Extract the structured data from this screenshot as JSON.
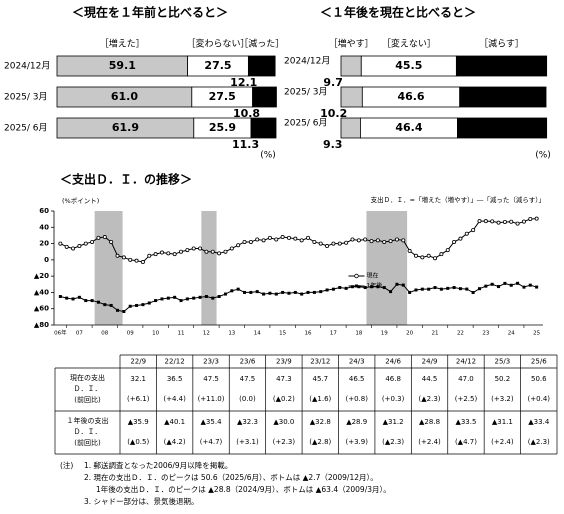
{
  "chart_data": [
    {
      "type": "bar",
      "orientation": "horizontal",
      "stacked": true,
      "title": "＜現在を１年前と比べると＞",
      "unit": "(%)",
      "categories": [
        "2024/12月",
        "2025/ 3月",
        "2025/ 6月"
      ],
      "xlim": [
        0,
        100
      ],
      "series": [
        {
          "name": "［増えた］",
          "color": "#c8c8c8",
          "values": [
            59.1,
            61,
            61.9
          ],
          "value_labels": [
            "59.1",
            "61.0",
            "61.9"
          ]
        },
        {
          "name": "［変わらない］",
          "color": "#ffffff",
          "values": [
            27.5,
            27.5,
            25.9
          ]
        },
        {
          "name": "［減った］",
          "color": "#000000",
          "values": [
            12.1,
            10.8,
            11.3
          ]
        }
      ]
    },
    {
      "type": "bar",
      "orientation": "horizontal",
      "stacked": true,
      "title": "＜１年後を現在と比べると＞",
      "unit": "(%)",
      "categories": [
        "2024/12月",
        "2025/ 3月",
        "2025/ 6月"
      ],
      "xlim": [
        0,
        100
      ],
      "series": [
        {
          "name": "［増やす］",
          "color": "#c8c8c8",
          "values": [
            9.7,
            10.2,
            9.3
          ]
        },
        {
          "name": "［変えない］",
          "color": "#ffffff",
          "values": [
            45.5,
            46.6,
            46.4
          ]
        },
        {
          "name": "［減らす］",
          "color": "#000000",
          "values": [
            43.2,
            41.3,
            42.7
          ]
        }
      ]
    },
    {
      "type": "line",
      "title": "＜支出Ｄ．Ｉ．の推移＞",
      "y_label": "(%ポイント)",
      "note": "支出Ｄ．Ｉ．=「増えた（増やす）」―「減った（減らす）」",
      "legend": "center",
      "grid": false,
      "x": [
        2006.75,
        2007,
        2007.25,
        2007.5,
        2007.75,
        2008,
        2008.25,
        2008.5,
        2008.75,
        2009,
        2009.25,
        2009.5,
        2009.75,
        2010,
        2010.25,
        2010.5,
        2010.75,
        2011,
        2011.25,
        2011.5,
        2011.75,
        2012,
        2012.25,
        2012.5,
        2012.75,
        2013,
        2013.25,
        2013.5,
        2013.75,
        2014,
        2014.25,
        2014.5,
        2014.75,
        2015,
        2015.25,
        2015.5,
        2015.75,
        2016,
        2016.25,
        2016.5,
        2016.75,
        2017,
        2017.25,
        2017.5,
        2017.75,
        2018,
        2018.25,
        2018.5,
        2018.75,
        2019,
        2019.25,
        2019.5,
        2019.75,
        2020,
        2020.25,
        2020.5,
        2020.75,
        2021,
        2021.25,
        2021.5,
        2021.75,
        2022,
        2022.25,
        2022.5,
        2022.75,
        2023,
        2023.25,
        2023.5,
        2023.75,
        2024,
        2024.25,
        2024.5,
        2024.75,
        2025,
        2025.25,
        2025.5
      ],
      "xlim": [
        2006.5,
        2025.75
      ],
      "xticks": [
        {
          "value": 2006,
          "label": "06年"
        },
        {
          "value": 2007,
          "label": "07"
        },
        {
          "value": 2008,
          "label": "08"
        },
        {
          "value": 2009,
          "label": "09"
        },
        {
          "value": 2010,
          "label": "10"
        },
        {
          "value": 2011,
          "label": "11"
        },
        {
          "value": 2012,
          "label": "12"
        },
        {
          "value": 2013,
          "label": "13"
        },
        {
          "value": 2014,
          "label": "14"
        },
        {
          "value": 2015,
          "label": "15"
        },
        {
          "value": 2016,
          "label": "16"
        },
        {
          "value": 2017,
          "label": "17"
        },
        {
          "value": 2018,
          "label": "18"
        },
        {
          "value": 2019,
          "label": "19"
        },
        {
          "value": 2020,
          "label": "20"
        },
        {
          "value": 2021,
          "label": "21"
        },
        {
          "value": 2022,
          "label": "22"
        },
        {
          "value": 2023,
          "label": "23"
        },
        {
          "value": 2024,
          "label": "24"
        },
        {
          "value": 2025,
          "label": "25"
        }
      ],
      "ylim": [
        -80,
        60
      ],
      "yticks": [
        60,
        40,
        20,
        0,
        {
          "value": -20,
          "label": "▲20"
        },
        {
          "value": -40,
          "label": "▲40"
        },
        {
          "value": -60,
          "label": "▲60"
        },
        {
          "value": -80,
          "label": "▲80"
        }
      ],
      "shading": [
        [
          2008.1,
          2009.2
        ],
        [
          2012.3,
          2012.9
        ],
        [
          2018.8,
          2020.4
        ]
      ],
      "shading_color": "#bdbdbd",
      "series": [
        {
          "name": "現在",
          "color": "#000000",
          "marker": "circle",
          "values": [
            20,
            16,
            14,
            17,
            20,
            22,
            27,
            28,
            22,
            5,
            3,
            0,
            -1,
            -2.7,
            5,
            7,
            9,
            8,
            7,
            10,
            12,
            14,
            14,
            10,
            10,
            8,
            10,
            14,
            18,
            22,
            22,
            25,
            24,
            27,
            25,
            28,
            27,
            26,
            24,
            27,
            22,
            20,
            17,
            20,
            20,
            21,
            25,
            24,
            25,
            23,
            24,
            22,
            23,
            25,
            24,
            11,
            5,
            3,
            5,
            2,
            7,
            12,
            22,
            26,
            32.1,
            36.5,
            47.5,
            47.5,
            47.3,
            45.7,
            46.5,
            46.8,
            44.5,
            47,
            50.2,
            50.6
          ]
        },
        {
          "name": "1年後",
          "color": "#000000",
          "marker": "square",
          "values": [
            -45,
            -47,
            -48,
            -46,
            -50,
            -50,
            -52,
            -55,
            -56,
            -62,
            -63.4,
            -57,
            -56,
            -55,
            -53,
            -50,
            -48,
            -47,
            -46,
            -50,
            -48,
            -47,
            -46,
            -45,
            -47,
            -45,
            -42,
            -38,
            -36,
            -40,
            -40,
            -39,
            -42,
            -41,
            -42,
            -40,
            -41,
            -40,
            -42,
            -40,
            -40,
            -39,
            -37,
            -36,
            -34,
            -35,
            -33,
            -33,
            -34,
            -33,
            -33,
            -34,
            -39,
            -30,
            -31,
            -40,
            -37,
            -36,
            -36,
            -34,
            -36,
            -35,
            -34,
            -35.4,
            -35.9,
            -40.1,
            -35.4,
            -32.3,
            -30,
            -32.8,
            -28.9,
            -31.2,
            -28.8,
            -33.5,
            -31.1,
            -33.4
          ]
        }
      ]
    }
  ],
  "table": {
    "columns": [
      "22/9",
      "22/12",
      "23/3",
      "23/6",
      "23/9",
      "23/12",
      "24/3",
      "24/6",
      "24/9",
      "24/12",
      "25/3",
      "25/6"
    ],
    "rows": [
      {
        "label": [
          "現在の支出",
          "Ｄ．Ｉ．",
          "(前回比)"
        ],
        "values": [
          "32.1",
          "36.5",
          "47.5",
          "47.5",
          "47.3",
          "45.7",
          "46.5",
          "46.8",
          "44.5",
          "47.0",
          "50.2",
          "50.6"
        ],
        "changes": [
          "(+6.1)",
          "(+4.4)",
          "(+11.0)",
          "(0.0)",
          "(▲0.2)",
          "(▲1.6)",
          "(+0.8)",
          "(+0.3)",
          "(▲2.3)",
          "(+2.5)",
          "(+3.2)",
          "(+0.4)"
        ]
      },
      {
        "label": [
          "１年後の支出",
          "Ｄ．Ｉ．",
          "(前回比)"
        ],
        "values": [
          "▲35.9",
          "▲40.1",
          "▲35.4",
          "▲32.3",
          "▲30.0",
          "▲32.8",
          "▲28.9",
          "▲31.2",
          "▲28.8",
          "▲33.5",
          "▲31.1",
          "▲33.4"
        ],
        "changes": [
          "(▲0.5)",
          "(▲4.2)",
          "(+4.7)",
          "(+3.1)",
          "(+2.3)",
          "(▲2.8)",
          "(+3.9)",
          "(▲2.3)",
          "(+2.4)",
          "(▲4.7)",
          "(+2.4)",
          "(▲2.3)"
        ]
      }
    ]
  },
  "notes": {
    "head": "(注)",
    "lines": [
      "1. 郵送調査となった2006/9月以降を掲載。",
      "2. 現在の支出Ｄ．Ｉ．のピークは 50.6（2025/6月）、ボトムは ▲2.7（2009/12月）。",
      "1年後の支出Ｄ．Ｉ．のピークは ▲28.8（2024/9月）、ボトムは ▲63.4（2009/3月）。",
      "3. シャドー部分は、景気後退期。"
    ]
  }
}
